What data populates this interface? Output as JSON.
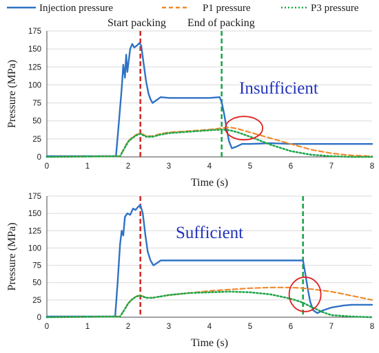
{
  "legend": [
    {
      "name": "Injection pressure",
      "color": "#2f72c4",
      "style": "solid"
    },
    {
      "name": "P1 pressure",
      "color": "#f08a2c",
      "style": "dashed"
    },
    {
      "name": "P3 pressure",
      "color": "#1ea64a",
      "style": "dotted"
    }
  ],
  "event_labels": {
    "start": "Start packing",
    "end": "End of packing"
  },
  "colors": {
    "start_marker": "#d0302a",
    "end_marker": "#1ea64a",
    "highlight": "#e02020"
  },
  "chart_data": [
    {
      "type": "line",
      "annotation": "Insufficient",
      "xlabel": "Time (s)",
      "ylabel": "Pressure (MPa)",
      "xlim": [
        0,
        8
      ],
      "ylim": [
        0,
        175
      ],
      "xticks": [
        "0",
        "1",
        "2",
        "3",
        "4",
        "5",
        "6",
        "7",
        "8"
      ],
      "yticks": [
        "0",
        "25",
        "50",
        "75",
        "100",
        "125",
        "150",
        "175"
      ],
      "start_packing_time": 2.3,
      "end_packing_time": 4.3,
      "highlight_circle": {
        "x": 4.85,
        "y": 40
      },
      "series": [
        {
          "name": "Injection pressure",
          "x": [
            0,
            1.7,
            1.76,
            1.84,
            1.88,
            1.92,
            1.95,
            1.98,
            2.05,
            2.1,
            2.15,
            2.22,
            2.27,
            2.32,
            2.38,
            2.44,
            2.5,
            2.55,
            2.6,
            2.7,
            2.8,
            3.0,
            3.5,
            4.0,
            4.25,
            4.3,
            4.36,
            4.42,
            4.48,
            4.55,
            4.65,
            4.8,
            5.0,
            5.5,
            6.0,
            6.5,
            7.0,
            7.5,
            8.0
          ],
          "y": [
            1,
            1,
            40,
            95,
            128,
            110,
            142,
            118,
            150,
            157,
            152,
            155,
            158,
            155,
            130,
            105,
            88,
            80,
            75,
            79,
            83,
            82,
            82,
            82,
            83,
            76,
            60,
            40,
            22,
            12,
            14,
            18,
            18,
            19,
            18,
            18,
            18,
            18,
            18
          ]
        },
        {
          "name": "P1 pressure",
          "x": [
            0,
            1.8,
            1.9,
            2.0,
            2.1,
            2.2,
            2.3,
            2.45,
            2.6,
            2.8,
            3.0,
            3.5,
            4.0,
            4.3,
            4.5,
            4.7,
            5.0,
            5.5,
            6.0,
            6.5,
            7.0,
            7.5,
            8.0
          ],
          "y": [
            0,
            1,
            12,
            22,
            27,
            31,
            33,
            29,
            29,
            32,
            34,
            36,
            38,
            40,
            41,
            39,
            34,
            26,
            18,
            10,
            5,
            2,
            1
          ]
        },
        {
          "name": "P3 pressure",
          "x": [
            0,
            1.8,
            1.9,
            2.0,
            2.1,
            2.2,
            2.3,
            2.45,
            2.6,
            2.8,
            3.0,
            3.5,
            4.0,
            4.3,
            4.5,
            4.7,
            5.0,
            5.5,
            6.0,
            6.5,
            7.0,
            7.5,
            8.0
          ],
          "y": [
            0,
            1,
            11,
            21,
            26,
            30,
            32,
            28,
            28,
            31,
            33,
            35,
            37,
            38,
            37,
            34,
            28,
            17,
            8,
            3,
            1,
            0,
            0
          ]
        }
      ]
    },
    {
      "type": "line",
      "annotation": "Sufficient",
      "xlabel": "Time (s)",
      "ylabel": "Pressure (MPa)",
      "xlim": [
        0,
        8
      ],
      "ylim": [
        0,
        175
      ],
      "xticks": [
        "0",
        "1",
        "2",
        "3",
        "4",
        "5",
        "6",
        "7",
        "8"
      ],
      "yticks": [
        "0",
        "25",
        "50",
        "75",
        "100",
        "125",
        "150",
        "175"
      ],
      "start_packing_time": 2.3,
      "end_packing_time": 6.3,
      "highlight_circle": {
        "x": 6.35,
        "y": 33
      },
      "series": [
        {
          "name": "Injection pressure",
          "x": [
            0,
            1.68,
            1.74,
            1.8,
            1.84,
            1.88,
            1.92,
            1.98,
            2.05,
            2.12,
            2.18,
            2.25,
            2.3,
            2.36,
            2.42,
            2.48,
            2.55,
            2.62,
            2.7,
            2.8,
            3.0,
            3.5,
            4.0,
            5.0,
            6.0,
            6.3,
            6.36,
            6.42,
            6.48,
            6.55,
            6.65,
            6.8,
            7.0,
            7.3,
            7.5,
            8.0
          ],
          "y": [
            1,
            1,
            50,
            105,
            125,
            118,
            145,
            150,
            148,
            157,
            155,
            160,
            162,
            150,
            120,
            95,
            82,
            75,
            78,
            82,
            82,
            82,
            82,
            82,
            82,
            82,
            62,
            40,
            22,
            10,
            6,
            10,
            14,
            17,
            18,
            18
          ]
        },
        {
          "name": "P1 pressure",
          "x": [
            0,
            1.8,
            1.9,
            2.0,
            2.1,
            2.2,
            2.3,
            2.45,
            2.6,
            2.8,
            3.0,
            3.5,
            4.0,
            4.5,
            5.0,
            5.5,
            6.0,
            6.3,
            6.6,
            7.0,
            7.5,
            8.0
          ],
          "y": [
            0,
            1,
            10,
            20,
            26,
            30,
            32,
            28,
            28,
            30,
            32,
            35,
            38,
            40,
            42,
            43,
            43,
            42,
            40,
            37,
            31,
            25
          ]
        },
        {
          "name": "P3 pressure",
          "x": [
            0,
            1.8,
            1.9,
            2.0,
            2.1,
            2.2,
            2.3,
            2.45,
            2.6,
            2.8,
            3.0,
            3.5,
            4.0,
            4.5,
            5.0,
            5.5,
            5.9,
            6.1,
            6.3,
            6.5,
            6.8,
            7.0,
            7.5,
            8.0
          ],
          "y": [
            0,
            1,
            10,
            20,
            26,
            30,
            31,
            28,
            28,
            30,
            32,
            35,
            36,
            37,
            36,
            33,
            28,
            25,
            21,
            15,
            7,
            3,
            1,
            0
          ]
        }
      ]
    }
  ]
}
